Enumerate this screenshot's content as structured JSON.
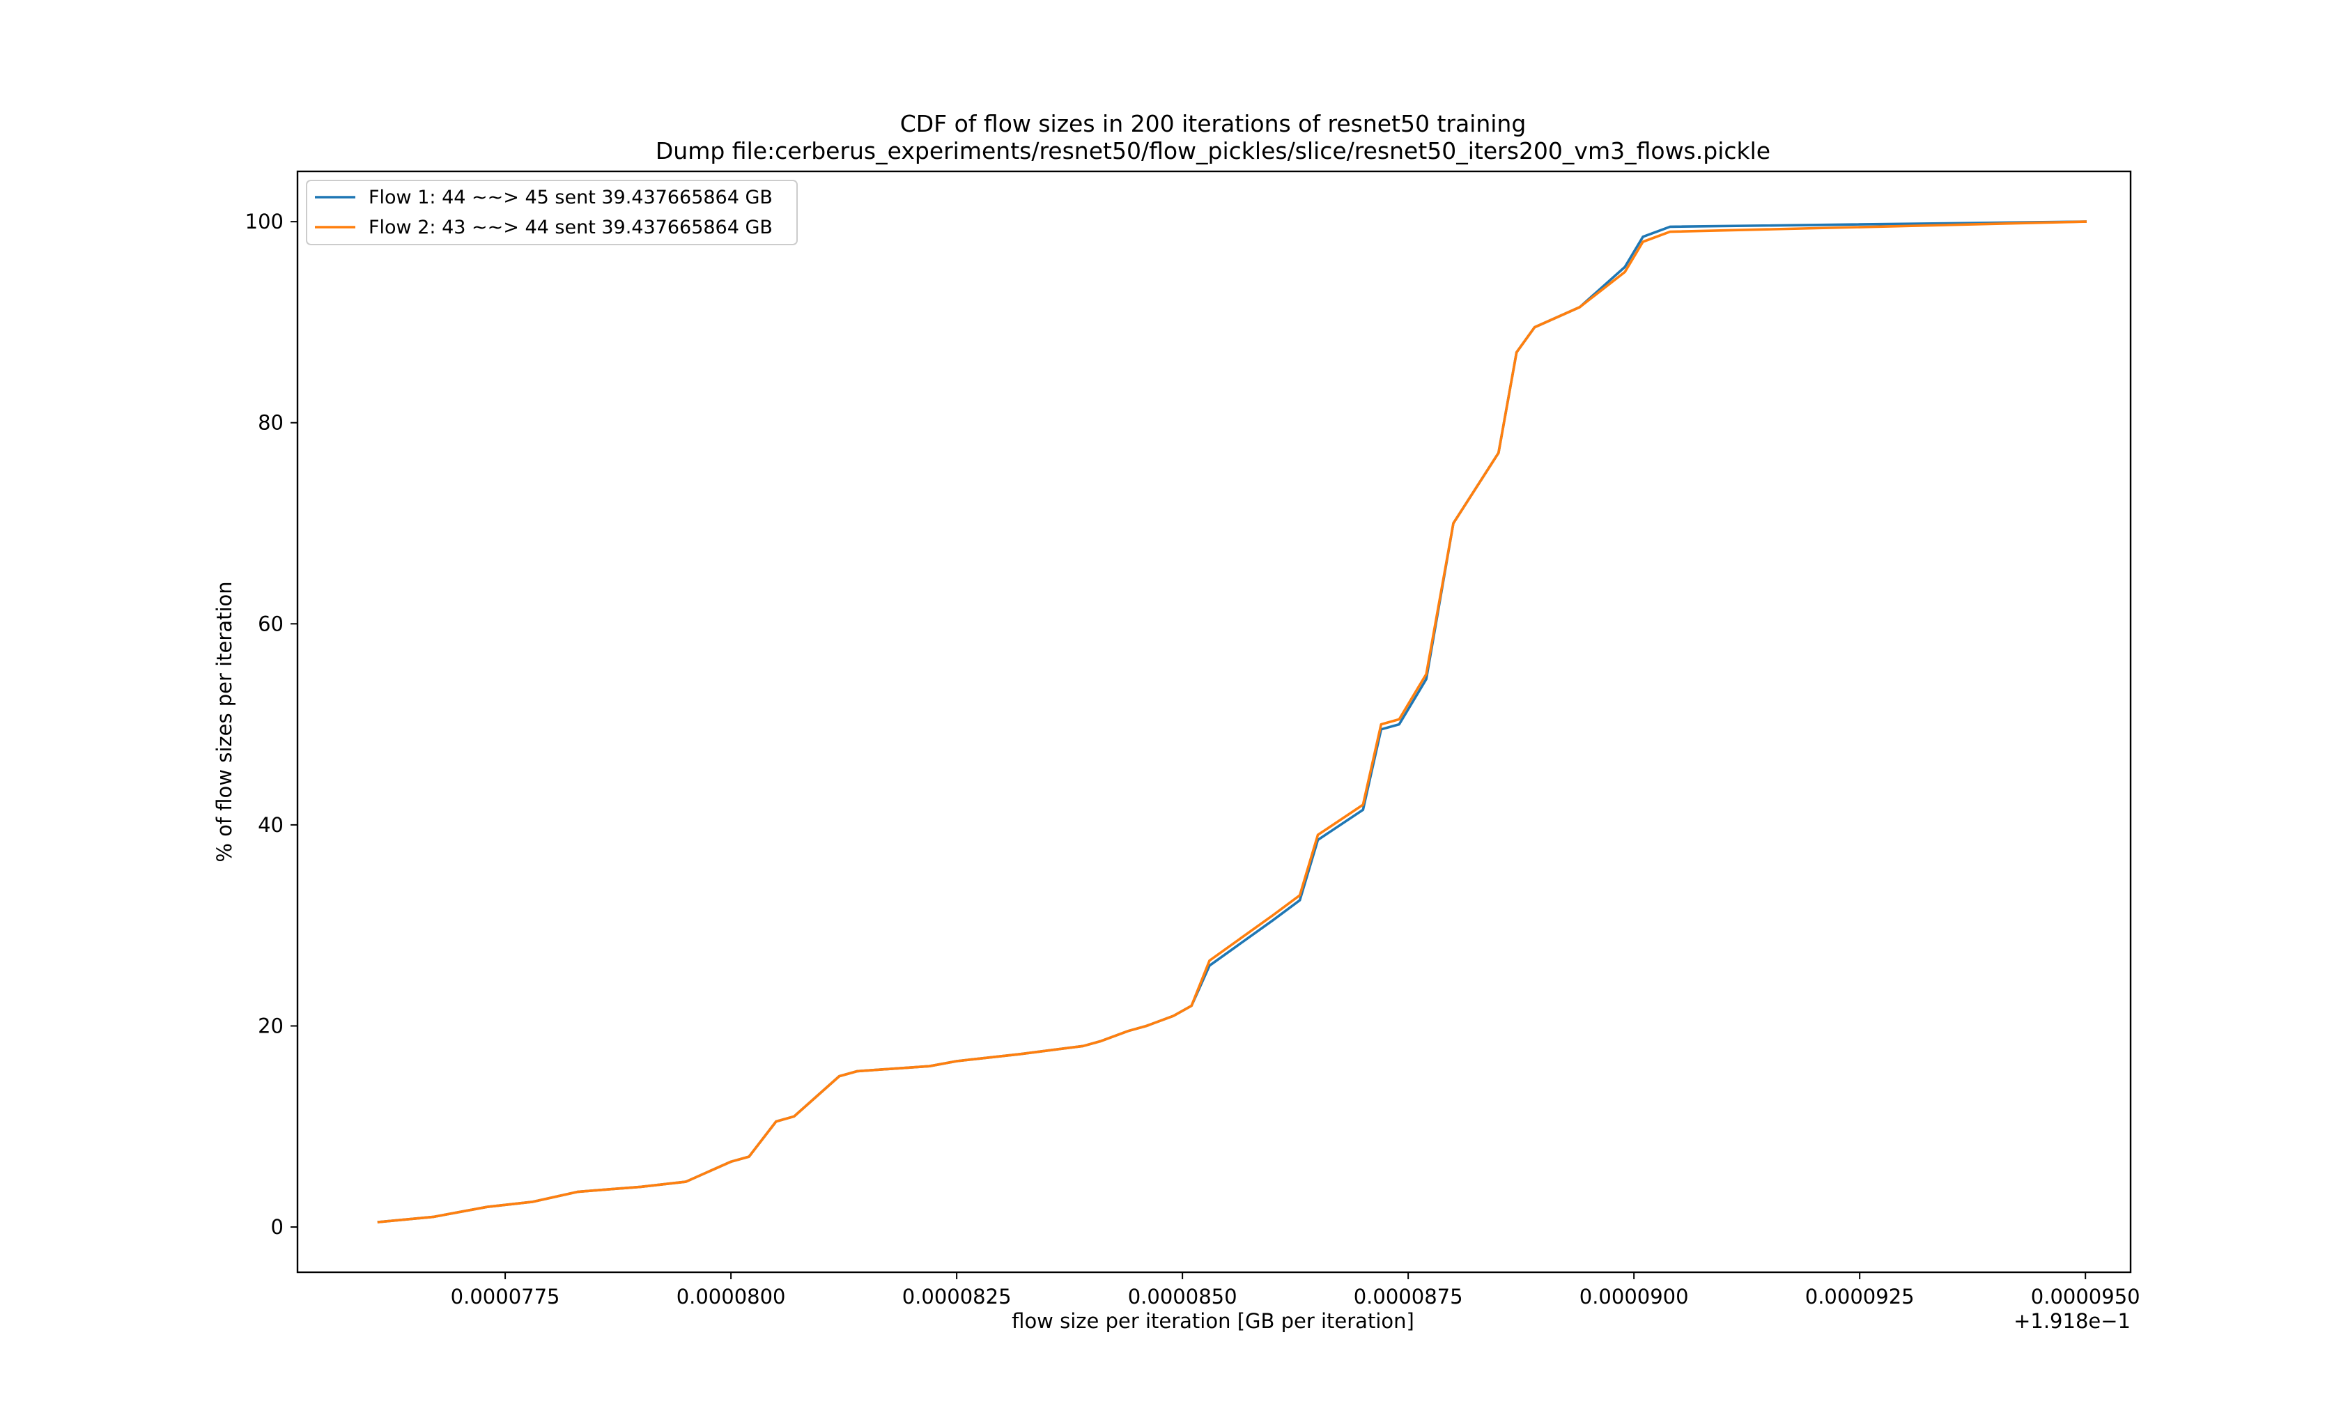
{
  "chart_data": {
    "type": "line",
    "title": "CDF of flow sizes in 200 iterations of resnet50 training",
    "subtitle": "Dump file:cerberus_experiments/resnet50/flow_pickles/slice/resnet50_iters200_vm3_flows.pickle",
    "xlabel": "flow size per iteration [GB per iteration]",
    "ylabel": "% of flow sizes per iteration",
    "x_offset_label": "+1.918e−1",
    "xlim": [
      7.52e-05,
      9.55e-05
    ],
    "ylim": [
      -4.5,
      105
    ],
    "xticks": [
      7.75e-05,
      8e-05,
      8.25e-05,
      8.5e-05,
      8.75e-05,
      9e-05,
      9.25e-05,
      9.5e-05
    ],
    "xtick_labels": [
      "0.0000775",
      "0.0000800",
      "0.0000825",
      "0.0000850",
      "0.0000875",
      "0.0000900",
      "0.0000925",
      "0.0000950"
    ],
    "yticks": [
      0,
      20,
      40,
      60,
      80,
      100
    ],
    "ytick_labels": [
      "0",
      "20",
      "40",
      "60",
      "80",
      "100"
    ],
    "grid": false,
    "legend_position": "top-left",
    "series": [
      {
        "name": "Flow 1: 44 ~~> 45 sent 39.437665864 GB",
        "color": "#1f77b4",
        "x": [
          7.61e-05,
          7.67e-05,
          7.73e-05,
          7.78e-05,
          7.83e-05,
          7.9e-05,
          7.95e-05,
          8e-05,
          8.02e-05,
          8.05e-05,
          8.07e-05,
          8.12e-05,
          8.14e-05,
          8.22e-05,
          8.25e-05,
          8.32e-05,
          8.39e-05,
          8.41e-05,
          8.44e-05,
          8.46e-05,
          8.49e-05,
          8.51e-05,
          8.53e-05,
          8.6e-05,
          8.63e-05,
          8.65e-05,
          8.7e-05,
          8.72e-05,
          8.74e-05,
          8.75e-05,
          8.77e-05,
          8.8e-05,
          8.85e-05,
          8.87e-05,
          8.89e-05,
          8.94e-05,
          8.99e-05,
          9.01e-05,
          9.04e-05,
          9.5e-05
        ],
        "y": [
          0.5,
          1,
          2,
          2.5,
          3.5,
          4,
          4.5,
          6.5,
          7,
          10.5,
          11,
          15,
          15.5,
          16,
          16.5,
          17.2,
          18,
          18.5,
          19.5,
          20,
          21,
          22,
          26,
          30.5,
          32.5,
          38.5,
          41.5,
          49.5,
          50,
          51.5,
          54.5,
          70,
          77,
          87,
          89.5,
          91.5,
          95.5,
          98.5,
          99.5,
          100
        ]
      },
      {
        "name": "Flow 2: 43 ~~> 44 sent 39.437665864 GB",
        "color": "#ff7f0e",
        "x": [
          7.61e-05,
          7.67e-05,
          7.73e-05,
          7.78e-05,
          7.83e-05,
          7.9e-05,
          7.95e-05,
          8e-05,
          8.02e-05,
          8.05e-05,
          8.07e-05,
          8.12e-05,
          8.14e-05,
          8.22e-05,
          8.25e-05,
          8.32e-05,
          8.39e-05,
          8.41e-05,
          8.44e-05,
          8.46e-05,
          8.49e-05,
          8.51e-05,
          8.53e-05,
          8.6e-05,
          8.63e-05,
          8.65e-05,
          8.7e-05,
          8.72e-05,
          8.74e-05,
          8.75e-05,
          8.77e-05,
          8.8e-05,
          8.85e-05,
          8.87e-05,
          8.89e-05,
          8.94e-05,
          8.99e-05,
          9.01e-05,
          9.04e-05,
          9.5e-05
        ],
        "y": [
          0.5,
          1,
          2,
          2.5,
          3.5,
          4,
          4.5,
          6.5,
          7,
          10.5,
          11,
          15,
          15.5,
          16,
          16.5,
          17.2,
          18,
          18.5,
          19.5,
          20,
          21,
          22,
          26.5,
          31,
          33,
          39,
          42,
          50,
          50.5,
          52,
          55,
          70,
          77,
          87,
          89.5,
          91.5,
          95,
          98,
          99,
          100
        ]
      }
    ]
  }
}
